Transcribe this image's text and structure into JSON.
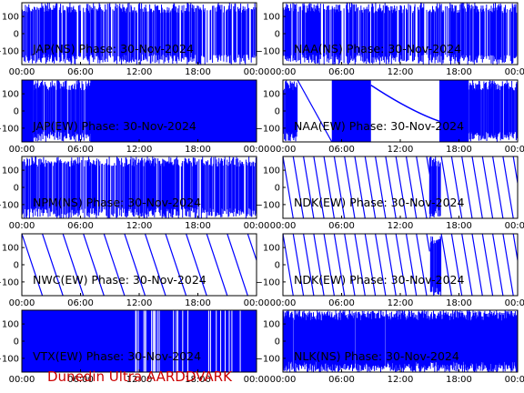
{
  "colors": {
    "trace": "#0000ff",
    "axis": "#000000",
    "footer": "#cc0000"
  },
  "footer_text": "Dunedin Ultra AARDDVARK",
  "chart_data": [
    {
      "type": "line",
      "title": "JAP(NS) Phase: 30-Nov-2024",
      "pattern": "noise",
      "xlim": [
        0,
        24
      ],
      "ylim": [
        -180,
        180
      ],
      "xticks": [
        "00:00",
        "06:00",
        "12:00",
        "18:00",
        "00:00"
      ],
      "yticks": [
        "100",
        "0",
        "−100"
      ]
    },
    {
      "type": "line",
      "title": "NAA(NS) Phase: 30-Nov-2024",
      "pattern": "noise",
      "xlim": [
        0,
        24
      ],
      "ylim": [
        -180,
        180
      ],
      "xticks": [
        "00:00",
        "06:00",
        "12:00",
        "18:00",
        "00:00"
      ],
      "yticks": [
        "100",
        "0",
        "−100"
      ]
    },
    {
      "type": "line",
      "title": "JAP(EW) Phase: 30-Nov-2024",
      "pattern": "solid_after_noise",
      "xlim": [
        0,
        24
      ],
      "ylim": [
        -180,
        180
      ],
      "xticks": [
        "00:00",
        "06:00",
        "12:00",
        "18:00",
        "00:00"
      ],
      "yticks": [
        "100",
        "0",
        "−100"
      ]
    },
    {
      "type": "line",
      "title": "NAA(EW) Phase: 30-Nov-2024",
      "pattern": "mixed",
      "xlim": [
        0,
        24
      ],
      "ylim": [
        -180,
        180
      ],
      "xticks": [
        "00:00",
        "06:00",
        "12:00",
        "18:00",
        "00:00"
      ],
      "yticks": [
        "100",
        "0",
        "−100"
      ]
    },
    {
      "type": "line",
      "title": "NPM(NS) Phase: 30-Nov-2024",
      "pattern": "noise",
      "xlim": [
        0,
        24
      ],
      "ylim": [
        -180,
        180
      ],
      "xticks": [
        "00:00",
        "06:00",
        "12:00",
        "18:00",
        "00:00"
      ],
      "yticks": [
        "100",
        "0",
        "−100"
      ]
    },
    {
      "type": "line",
      "title": "NDK(EW) Phase: 30-Nov-2024",
      "pattern": "sawtooth_fast",
      "xlim": [
        0,
        24
      ],
      "ylim": [
        -180,
        180
      ],
      "xticks": [
        "00:00",
        "06:00",
        "12:00",
        "18:00",
        "00:00"
      ],
      "yticks": [
        "100",
        "0",
        "−100"
      ]
    },
    {
      "type": "line",
      "title": "NWC(EW) Phase: 30-Nov-2024",
      "pattern": "sawtooth_slow",
      "xlim": [
        0,
        24
      ],
      "ylim": [
        -180,
        180
      ],
      "xticks": [
        "00:00",
        "06:00",
        "12:00",
        "18:00",
        "00:00"
      ],
      "yticks": [
        "100",
        "0",
        "−100"
      ]
    },
    {
      "type": "line",
      "title": "NDK(EW) Phase: 30-Nov-2024",
      "pattern": "sawtooth_fast",
      "xlim": [
        0,
        24
      ],
      "ylim": [
        -180,
        180
      ],
      "xticks": [
        "00:00",
        "06:00",
        "12:00",
        "18:00",
        "00:00"
      ],
      "yticks": [
        "100",
        "0",
        "−100"
      ]
    },
    {
      "type": "line",
      "title": "VTX(EW) Phase: 30-Nov-2024",
      "pattern": "solid",
      "xlim": [
        0,
        24
      ],
      "ylim": [
        -180,
        180
      ],
      "xticks": [
        "00:00",
        "06:00",
        "12:00",
        "18:00",
        "00:00"
      ],
      "yticks": [
        "100",
        "0",
        "−100"
      ]
    },
    {
      "type": "line",
      "title": "NLK(NS) Phase: 30-Nov-2024",
      "pattern": "noise_dense",
      "xlim": [
        0,
        24
      ],
      "ylim": [
        -180,
        180
      ],
      "xticks": [
        "00:00",
        "06:00",
        "12:00",
        "18:00",
        "00:00"
      ],
      "yticks": [
        "100",
        "0",
        "−100"
      ]
    }
  ]
}
